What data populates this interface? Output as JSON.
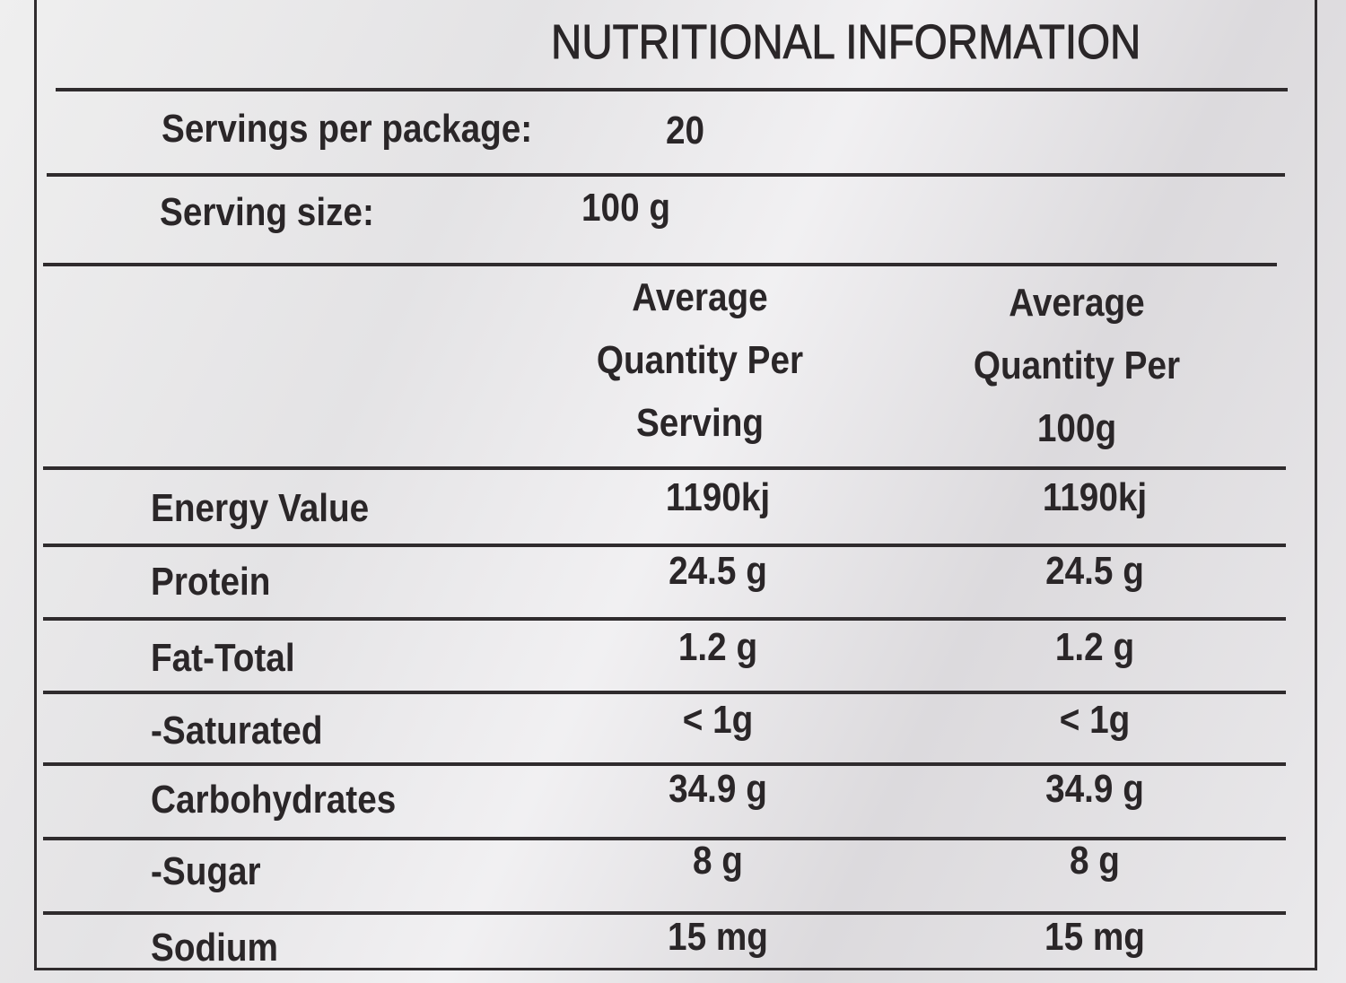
{
  "title": "NUTRITIONAL INFORMATION",
  "servings_per_package": {
    "label": "Servings per package:",
    "value": "20"
  },
  "serving_size": {
    "label": "Serving size:",
    "value": "100 g"
  },
  "table": {
    "columns": [
      [
        "Average",
        "Quantity Per",
        "Serving"
      ],
      [
        "Average",
        "Quantity Per",
        "100g"
      ]
    ],
    "rows": [
      [
        "Energy Value",
        "1190kj",
        "1190kj"
      ],
      [
        "Protein",
        "24.5 g",
        "24.5 g"
      ],
      [
        "Fat-Total",
        "1.2 g",
        "1.2 g"
      ],
      [
        "-Saturated",
        "< 1g",
        "< 1g"
      ],
      [
        "Carbohydrates",
        "34.9 g",
        "34.9 g"
      ],
      [
        "-Sugar",
        "8 g",
        "8 g"
      ],
      [
        "Sodium",
        "15 mg",
        "15 mg"
      ]
    ]
  }
}
